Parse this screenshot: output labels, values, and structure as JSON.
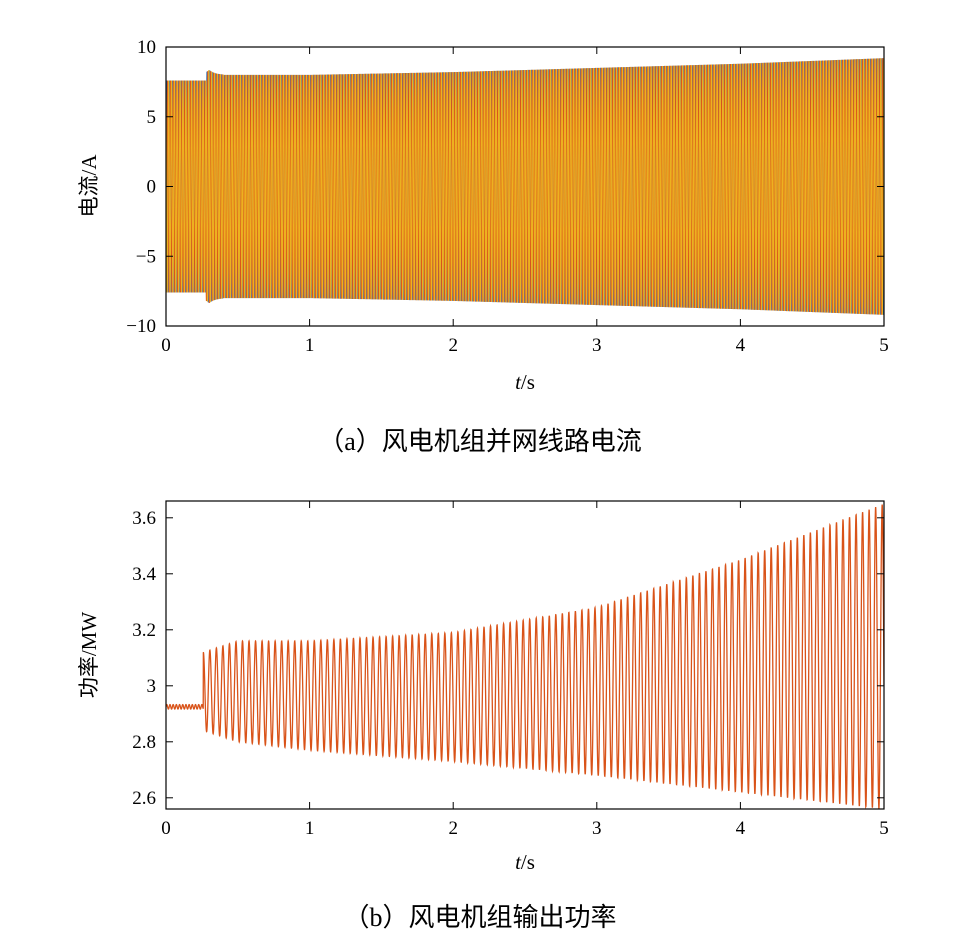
{
  "chart_data": [
    {
      "type": "line",
      "caption": "（a）风电机组并网线路电流",
      "xlabel_var": "t",
      "xlabel_unit": "/s",
      "ylabel": "电流/A",
      "xlim": [
        0,
        5
      ],
      "ylim": [
        -10,
        10
      ],
      "x_ticks": [
        "0",
        "1",
        "2",
        "3",
        "4",
        "5"
      ],
      "y_ticks": [
        {
          "value": 10,
          "label": "10"
        },
        {
          "value": 5,
          "label": "5"
        },
        {
          "value": 0,
          "label": "0"
        },
        {
          "value": -5,
          "label": "−5"
        },
        {
          "value": -10,
          "label": "−10"
        }
      ],
      "waveform": "three-phase sinusoidal current",
      "frequency_hz": 50,
      "disturbance_time_s": 0.28,
      "series": [
        {
          "color": "#3d7cb8",
          "phase_deg": 0,
          "envelope": {
            "x": [
              0,
              0.28,
              0.3,
              1,
              2,
              3,
              4,
              5
            ],
            "amplitude": [
              7.6,
              7.6,
              8.0,
              8.0,
              8.2,
              8.5,
              8.8,
              9.2
            ]
          }
        },
        {
          "color": "#d95319",
          "phase_deg": -120,
          "envelope": {
            "x": [
              0,
              0.28,
              0.3,
              1,
              2,
              3,
              4,
              5
            ],
            "amplitude": [
              7.6,
              7.6,
              8.0,
              8.0,
              8.2,
              8.5,
              8.8,
              9.2
            ]
          }
        },
        {
          "color": "#edb120",
          "phase_deg": 120,
          "envelope": {
            "x": [
              0,
              0.28,
              0.3,
              1,
              2,
              3,
              4,
              5
            ],
            "amplitude": [
              7.6,
              7.6,
              8.0,
              8.0,
              8.2,
              8.5,
              8.8,
              9.2
            ]
          }
        }
      ]
    },
    {
      "type": "line",
      "caption": "（b）风电机组输出功率",
      "xlabel_var": "t",
      "xlabel_unit": "/s",
      "ylabel": "功率/MW",
      "xlim": [
        0,
        5
      ],
      "ylim": [
        2.56,
        3.66
      ],
      "x_ticks": [
        "0",
        "1",
        "2",
        "3",
        "4",
        "5"
      ],
      "y_ticks": [
        {
          "value": 3.6,
          "label": "3.6"
        },
        {
          "value": 3.4,
          "label": "3.4"
        },
        {
          "value": 3.2,
          "label": "3.2"
        },
        {
          "value": 3.0,
          "label": "3"
        },
        {
          "value": 2.8,
          "label": "2.8"
        },
        {
          "value": 2.6,
          "label": "2.6"
        }
      ],
      "series": [
        {
          "color": "#d95319",
          "oscillation_frequency_hz": 22,
          "steady_state": {
            "x": [
              0,
              0.26
            ],
            "mean": 2.925,
            "ripple": 0.008
          },
          "oscillation": {
            "x": [
              0.26,
              0.5,
              1,
              2,
              3,
              4,
              5
            ],
            "mean": [
              2.96,
              2.96,
              2.97,
              2.98,
              3.0,
              3.06,
              3.1
            ],
            "max": [
              3.12,
              3.16,
              3.16,
              3.19,
              3.28,
              3.45,
              3.65
            ],
            "min": [
              2.84,
              2.8,
              2.77,
              2.73,
              2.68,
              2.62,
              2.56
            ]
          }
        }
      ]
    }
  ]
}
